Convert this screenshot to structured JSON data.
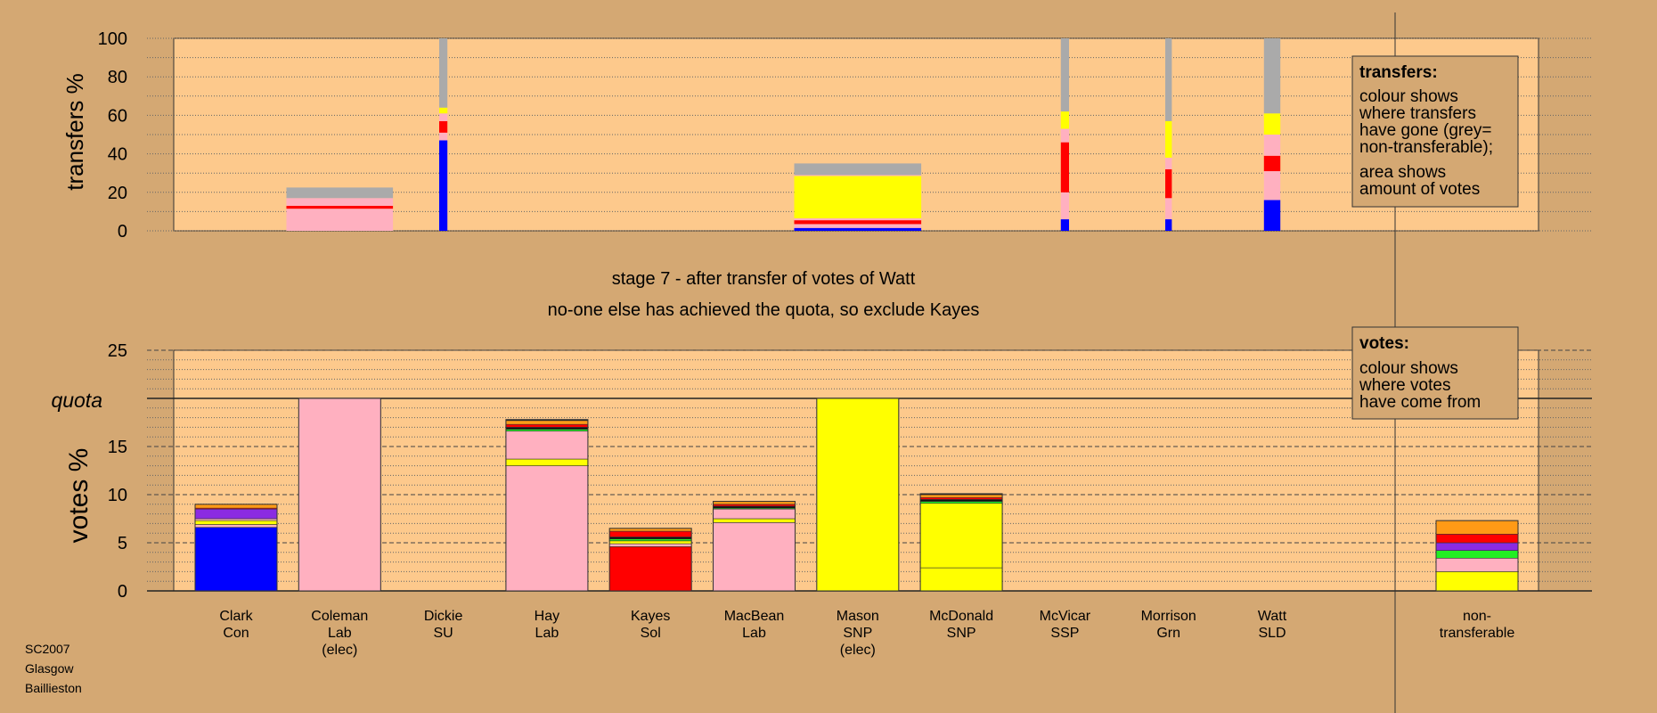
{
  "colors": {
    "page_bg": "#D4A873",
    "plot_bg": "#FDC98C",
    "con": "#0000FF",
    "lab": "#FFB0C0",
    "snp": "#FFFF00",
    "sol": "#FF0000",
    "grn": "#22EE22",
    "ssp": "#FF0000",
    "ind": "#8B2BE2",
    "other": "#FF9A16",
    "misc": "#111111",
    "nontransferable": "#AAAAAA"
  },
  "headings": {
    "stage": "stage 7 - after transfer of votes of Watt",
    "status": "no-one else has achieved the quota, so exclude Kayes"
  },
  "footer": [
    "SC2007",
    "Glasgow",
    "Baillieston"
  ],
  "quota_label": "quota",
  "legend_transfers": {
    "title": "transfers:",
    "lines": [
      "colour shows",
      "where transfers",
      "have gone (grey=",
      "non-transferable);"
    ],
    "lines2": [
      "area shows",
      "amount of votes"
    ]
  },
  "legend_votes": {
    "title": "votes:",
    "lines": [
      "colour shows",
      "where votes",
      "have come from"
    ]
  },
  "chart_data": [
    {
      "type": "bar",
      "title": "",
      "ylabel": "transfers %",
      "ylim": [
        0,
        100
      ],
      "yticks": [
        0,
        20,
        40,
        60,
        80,
        100
      ],
      "grid": true,
      "bars": [
        {
          "index": 1,
          "width_scale": 1.3,
          "segments": [
            {
              "color": "lab",
              "v": 11.5
            },
            {
              "color": "sol",
              "v": 1.5
            },
            {
              "color": "lab",
              "v": 4
            },
            {
              "color": "nontransferable",
              "v": 5.5
            }
          ]
        },
        {
          "index": 2,
          "width_scale": 0.1,
          "segments": [
            {
              "color": "con",
              "v": 47
            },
            {
              "color": "lab",
              "v": 4
            },
            {
              "color": "sol",
              "v": 6
            },
            {
              "color": "lab",
              "v": 4
            },
            {
              "color": "snp",
              "v": 3
            },
            {
              "color": "nontransferable",
              "v": 36
            }
          ]
        },
        {
          "index": 6,
          "width_scale": 1.55,
          "segments": [
            {
              "color": "con",
              "v": 1.5
            },
            {
              "color": "lab",
              "v": 2
            },
            {
              "color": "sol",
              "v": 2
            },
            {
              "color": "lab",
              "v": 1
            },
            {
              "color": "snp",
              "v": 22
            },
            {
              "color": "lab",
              "v": 0.5
            },
            {
              "color": "nontransferable",
              "v": 6
            }
          ]
        },
        {
          "index": 8,
          "width_scale": 0.1,
          "segments": [
            {
              "color": "con",
              "v": 6
            },
            {
              "color": "lab",
              "v": 14
            },
            {
              "color": "sol",
              "v": 26
            },
            {
              "color": "lab",
              "v": 7
            },
            {
              "color": "snp",
              "v": 9
            },
            {
              "color": "nontransferable",
              "v": 38
            }
          ]
        },
        {
          "index": 9,
          "width_scale": 0.08,
          "segments": [
            {
              "color": "con",
              "v": 6
            },
            {
              "color": "lab",
              "v": 11
            },
            {
              "color": "sol",
              "v": 15
            },
            {
              "color": "lab",
              "v": 6
            },
            {
              "color": "snp",
              "v": 19
            },
            {
              "color": "nontransferable",
              "v": 43
            }
          ]
        },
        {
          "index": 10,
          "width_scale": 0.2,
          "segments": [
            {
              "color": "con",
              "v": 16
            },
            {
              "color": "lab",
              "v": 15
            },
            {
              "color": "sol",
              "v": 8
            },
            {
              "color": "lab",
              "v": 11
            },
            {
              "color": "snp",
              "v": 11
            },
            {
              "color": "nontransferable",
              "v": 39
            }
          ]
        }
      ]
    },
    {
      "type": "bar",
      "title": "",
      "ylabel": "votes %",
      "ylim": [
        0,
        25
      ],
      "yticks": [
        0,
        5,
        10,
        15,
        20,
        25
      ],
      "quota": 20,
      "grid": true,
      "categories": [
        [
          "Clark",
          "Con"
        ],
        [
          "Coleman",
          "Lab",
          "(elec)"
        ],
        [
          "Dickie",
          "SU"
        ],
        [
          "Hay",
          "Lab"
        ],
        [
          "Kayes",
          "Sol"
        ],
        [
          "MacBean",
          "Lab"
        ],
        [
          "Mason",
          "SNP",
          "(elec)"
        ],
        [
          "McDonald",
          "SNP"
        ],
        [
          "McVicar",
          "SSP"
        ],
        [
          "Morrison",
          "Grn"
        ],
        [
          "Watt",
          "SLD"
        ],
        [
          "non-",
          "transferable"
        ]
      ],
      "bars": [
        {
          "index": 0,
          "segments": [
            {
              "color": "con",
              "v": 6.6
            },
            {
              "color": "lab",
              "v": 0.3
            },
            {
              "color": "snp",
              "v": 0.4
            },
            {
              "color": "lab",
              "v": 0.2
            },
            {
              "color": "ind",
              "v": 1.0
            },
            {
              "color": "sol",
              "v": 0.1
            },
            {
              "color": "other",
              "v": 0.4
            }
          ]
        },
        {
          "index": 1,
          "segments": [
            {
              "color": "lab",
              "v": 20
            }
          ]
        },
        {
          "index": 2,
          "segments": []
        },
        {
          "index": 3,
          "segments": [
            {
              "color": "lab",
              "v": 13.0
            },
            {
              "color": "snp",
              "v": 0.7
            },
            {
              "color": "lab",
              "v": 2.9
            },
            {
              "color": "grn",
              "v": 0.2
            },
            {
              "color": "misc",
              "v": 0.2
            },
            {
              "color": "sol",
              "v": 0.3
            },
            {
              "color": "other",
              "v": 0.4
            },
            {
              "color": "misc",
              "v": 0.1
            }
          ]
        },
        {
          "index": 4,
          "segments": [
            {
              "color": "sol",
              "v": 4.6
            },
            {
              "color": "lab",
              "v": 0.3
            },
            {
              "color": "snp",
              "v": 0.3
            },
            {
              "color": "grn",
              "v": 0.2
            },
            {
              "color": "misc",
              "v": 0.2
            },
            {
              "color": "sol",
              "v": 0.6
            },
            {
              "color": "other",
              "v": 0.3
            }
          ]
        },
        {
          "index": 5,
          "segments": [
            {
              "color": "lab",
              "v": 7.1
            },
            {
              "color": "snp",
              "v": 0.4
            },
            {
              "color": "lab",
              "v": 1.0
            },
            {
              "color": "grn",
              "v": 0.1
            },
            {
              "color": "misc",
              "v": 0.2
            },
            {
              "color": "sol",
              "v": 0.2
            },
            {
              "color": "other",
              "v": 0.3
            }
          ]
        },
        {
          "index": 6,
          "segments": [
            {
              "color": "snp",
              "v": 20
            }
          ]
        },
        {
          "index": 7,
          "segments": [
            {
              "color": "snp",
              "v": 2.4
            },
            {
              "color": "snp",
              "v": 6.7
            },
            {
              "color": "grn",
              "v": 0.2
            },
            {
              "color": "misc",
              "v": 0.2
            },
            {
              "color": "sol",
              "v": 0.2
            },
            {
              "color": "other",
              "v": 0.3
            },
            {
              "color": "misc",
              "v": 0.1
            }
          ]
        },
        {
          "index": 8,
          "segments": []
        },
        {
          "index": 9,
          "segments": []
        },
        {
          "index": 10,
          "segments": []
        },
        {
          "index": 11,
          "segments": [
            {
              "color": "snp",
              "v": 2.0
            },
            {
              "color": "lab",
              "v": 1.4
            },
            {
              "color": "grn",
              "v": 0.8
            },
            {
              "color": "ind",
              "v": 0.8
            },
            {
              "color": "sol",
              "v": 0.9
            },
            {
              "color": "other",
              "v": 1.4
            }
          ]
        }
      ]
    }
  ]
}
